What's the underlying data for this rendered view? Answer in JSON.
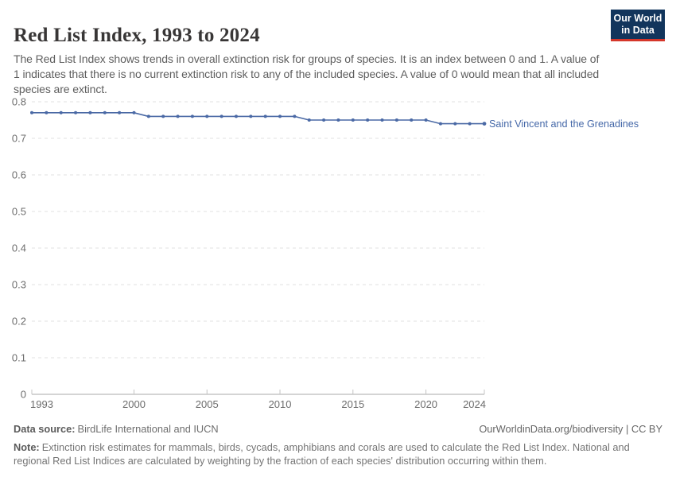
{
  "logo": {
    "line1": "Our World",
    "line2": "in Data"
  },
  "header": {
    "title": "Red List Index, 1993 to 2024",
    "subtitle": "The Red List Index shows trends in overall extinction risk for groups of species. It is an index between 0 and 1. A value of 1 indicates that there is no current extinction risk to any of the included species. A value of 0 would mean that all included species are extinct."
  },
  "chart_data": {
    "type": "line",
    "title": "Red List Index, 1993 to 2024",
    "xlabel": "",
    "ylabel": "",
    "entity_label": "Saint Vincent and the Grenadines",
    "series": [
      {
        "name": "Saint Vincent and the Grenadines",
        "x": [
          1993,
          1994,
          1995,
          1996,
          1997,
          1998,
          1999,
          2000,
          2001,
          2002,
          2003,
          2004,
          2005,
          2006,
          2007,
          2008,
          2009,
          2010,
          2011,
          2012,
          2013,
          2014,
          2015,
          2016,
          2017,
          2018,
          2019,
          2020,
          2021,
          2022,
          2023,
          2024
        ],
        "values": [
          0.77,
          0.77,
          0.77,
          0.77,
          0.77,
          0.77,
          0.77,
          0.77,
          0.76,
          0.76,
          0.76,
          0.76,
          0.76,
          0.76,
          0.76,
          0.76,
          0.76,
          0.76,
          0.76,
          0.75,
          0.75,
          0.75,
          0.75,
          0.75,
          0.75,
          0.75,
          0.75,
          0.75,
          0.74,
          0.74,
          0.74,
          0.74
        ]
      }
    ],
    "xlim": [
      1993,
      2024
    ],
    "ylim": [
      0,
      0.8
    ],
    "x_ticks": [
      1993,
      2000,
      2005,
      2010,
      2015,
      2020,
      2024
    ],
    "y_ticks": [
      0,
      0.1,
      0.2,
      0.3,
      0.4,
      0.5,
      0.6,
      0.7,
      0.8
    ],
    "grid": true,
    "legend_position": "end-of-line-label",
    "line_color": "#4a69a5",
    "label_color": "#4568a8",
    "logo_bg_color": "#12355c",
    "logo_accent_color": "#d5362a"
  },
  "footer": {
    "datasource_label": "Data source:",
    "datasource_value": "BirdLife International and IUCN",
    "license": "OurWorldinData.org/biodiversity | CC BY",
    "note_label": "Note:",
    "note_value": "Extinction risk estimates for mammals, birds, cycads, amphibians and corals are used to calculate the Red List Index. National and regional Red List Indices are calculated by weighting by the fraction of each species' distribution occurring within them."
  }
}
